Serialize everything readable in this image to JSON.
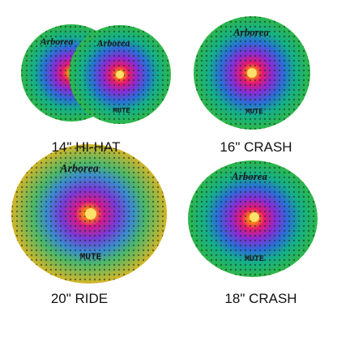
{
  "brand": "Arborea",
  "model": "MUTE",
  "cymbals": [
    {
      "label": "14\" HI-HAT"
    },
    {
      "label": "16\" CRASH"
    },
    {
      "label": "20\" RIDE"
    },
    {
      "label": "18\" CRASH"
    }
  ]
}
